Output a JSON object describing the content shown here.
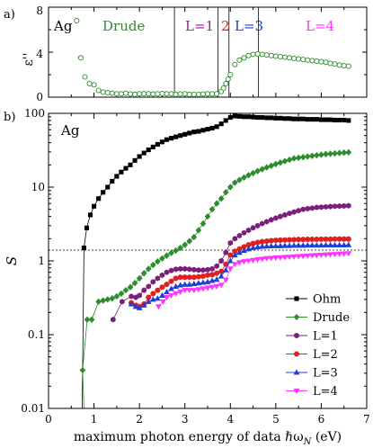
{
  "panel_a": {
    "panel_label": "a)",
    "metal": "Ag",
    "ylabel": "ε''",
    "region_labels": [
      {
        "text": "Drude",
        "color": "#2e8b2e"
      },
      {
        "text": "L=1",
        "color": "#9b1b9b"
      },
      {
        "text": "2",
        "color": "#e02020"
      },
      {
        "text": "L=3",
        "color": "#1a3fd6"
      },
      {
        "text": "L=4",
        "color": "#ff33ff"
      }
    ],
    "y_ticks": [
      "0",
      "4",
      "8"
    ],
    "x_tick_labels": [
      "0",
      "1",
      "2",
      "3",
      "4",
      "5",
      "6",
      "7"
    ]
  },
  "panel_b": {
    "panel_label": "b)",
    "metal": "Ag",
    "ylabel": "S",
    "y_tick_labels": [
      "0.01",
      "0.1",
      "1",
      "10",
      "100"
    ],
    "x_tick_labels": [
      "0",
      "1",
      "2",
      "3",
      "4",
      "5",
      "6",
      "7"
    ],
    "xlabel": "maximum photon energy of data ℏωN (eV)",
    "xlabel_main": "maximum photon energy of data ℏω",
    "xlabel_sub": "N",
    "xlabel_unit": " (eV)"
  },
  "chart_data": [
    {
      "type": "scatter",
      "panel": "a",
      "xlim": [
        0,
        7
      ],
      "ylim": [
        0,
        8
      ],
      "yticks": [
        0,
        4,
        8
      ],
      "markers": "open-circle",
      "marker_color": "#2e8b2e",
      "x": [
        0.62,
        0.71,
        0.8,
        0.9,
        1.0,
        1.1,
        1.2,
        1.3,
        1.4,
        1.5,
        1.6,
        1.7,
        1.8,
        1.9,
        2.0,
        2.1,
        2.2,
        2.3,
        2.4,
        2.5,
        2.6,
        2.7,
        2.8,
        2.9,
        3.0,
        3.1,
        3.2,
        3.3,
        3.4,
        3.5,
        3.6,
        3.7,
        3.8,
        3.85,
        3.9,
        3.95,
        4.0,
        4.1,
        4.2,
        4.3,
        4.4,
        4.5,
        4.6,
        4.7,
        4.8,
        4.9,
        5.0,
        5.1,
        5.2,
        5.3,
        5.4,
        5.5,
        5.6,
        5.7,
        5.8,
        5.9,
        6.0,
        6.1,
        6.2,
        6.3,
        6.4,
        6.5,
        6.6
      ],
      "y": [
        6.8,
        3.5,
        1.8,
        1.2,
        1.1,
        0.6,
        0.45,
        0.4,
        0.35,
        0.3,
        0.3,
        0.35,
        0.28,
        0.25,
        0.3,
        0.32,
        0.3,
        0.28,
        0.3,
        0.32,
        0.3,
        0.3,
        0.25,
        0.28,
        0.3,
        0.25,
        0.25,
        0.25,
        0.28,
        0.3,
        0.3,
        0.3,
        0.5,
        0.8,
        1.2,
        1.6,
        2.0,
        2.9,
        3.3,
        3.5,
        3.7,
        3.8,
        3.85,
        3.8,
        3.75,
        3.7,
        3.65,
        3.6,
        3.55,
        3.5,
        3.45,
        3.4,
        3.35,
        3.3,
        3.25,
        3.2,
        3.15,
        3.1,
        3.0,
        2.95,
        2.85,
        2.8,
        2.75
      ],
      "vlines": [
        2.77,
        3.73,
        3.97,
        4.62
      ]
    },
    {
      "type": "line",
      "panel": "b",
      "yscale": "log",
      "xlim": [
        0,
        7
      ],
      "ylim": [
        0.01,
        100
      ],
      "xlabel": "maximum photon energy of data ℏωN (eV)",
      "ylabel": "S",
      "hline": 1.4,
      "legend_position": "lower-right",
      "series": [
        {
          "name": "Ohm",
          "color": "#000000",
          "marker": "square",
          "x": [
            0.78,
            0.84,
            0.92,
            1.0,
            1.1,
            1.2,
            1.3,
            1.4,
            1.5,
            1.6,
            1.7,
            1.8,
            1.9,
            2.0,
            2.1,
            2.2,
            2.3,
            2.4,
            2.5,
            2.6,
            2.7,
            2.8,
            2.9,
            3.0,
            3.1,
            3.2,
            3.3,
            3.4,
            3.5,
            3.6,
            3.7,
            3.8,
            3.9,
            4.0,
            4.1,
            4.2,
            4.3,
            4.4,
            4.5,
            4.6,
            4.7,
            4.8,
            4.9,
            5.0,
            5.1,
            5.2,
            5.3,
            5.4,
            5.5,
            5.6,
            5.7,
            5.8,
            5.9,
            6.0,
            6.1,
            6.2,
            6.3,
            6.4,
            6.5,
            6.6
          ],
          "y": [
            1.5,
            2.8,
            4.2,
            5.5,
            7.0,
            8.5,
            10,
            12,
            14,
            16,
            18,
            20,
            23,
            26,
            29,
            32,
            35,
            38,
            41,
            44,
            46,
            48,
            50,
            52,
            54,
            56,
            57,
            59,
            61,
            63,
            66,
            72,
            80,
            88,
            92,
            91,
            90,
            90,
            89,
            88,
            88,
            87,
            87,
            86,
            86,
            85,
            85,
            84,
            84,
            84,
            83,
            83,
            83,
            82,
            82,
            82,
            81,
            81,
            81,
            80
          ]
        },
        {
          "name": "Drude",
          "color": "#2e8b2e",
          "marker": "diamond",
          "x": [
            0.75,
            0.85,
            0.95,
            1.1,
            1.2,
            1.3,
            1.4,
            1.5,
            1.6,
            1.7,
            1.8,
            1.9,
            2.0,
            2.1,
            2.2,
            2.3,
            2.4,
            2.5,
            2.6,
            2.7,
            2.8,
            2.9,
            3.0,
            3.1,
            3.2,
            3.3,
            3.4,
            3.5,
            3.6,
            3.7,
            3.8,
            3.9,
            4.0,
            4.1,
            4.2,
            4.3,
            4.4,
            4.5,
            4.6,
            4.7,
            4.8,
            4.9,
            5.0,
            5.1,
            5.2,
            5.3,
            5.4,
            5.5,
            5.6,
            5.7,
            5.8,
            5.9,
            6.0,
            6.1,
            6.2,
            6.3,
            6.4,
            6.5,
            6.6
          ],
          "y": [
            0.033,
            0.16,
            0.16,
            0.28,
            0.29,
            0.3,
            0.31,
            0.33,
            0.36,
            0.4,
            0.44,
            0.5,
            0.58,
            0.68,
            0.78,
            0.88,
            0.98,
            1.08,
            1.18,
            1.28,
            1.38,
            1.5,
            1.65,
            1.85,
            2.1,
            2.6,
            3.2,
            4.0,
            5.0,
            6.0,
            7.0,
            8.5,
            10,
            11.5,
            12.5,
            13.5,
            14.5,
            15.5,
            16.5,
            17.5,
            18.5,
            19.5,
            20.5,
            21.5,
            22.5,
            23.5,
            24.5,
            25,
            25.5,
            26,
            26.5,
            27,
            27.5,
            28,
            28.3,
            28.6,
            29,
            29.3,
            29.6
          ]
        },
        {
          "name": "L=1",
          "color": "#7a1f7a",
          "marker": "hexagon",
          "x": [
            1.42,
            1.62,
            1.82,
            1.92,
            2.0,
            2.1,
            2.2,
            2.3,
            2.4,
            2.5,
            2.6,
            2.7,
            2.8,
            2.9,
            3.0,
            3.1,
            3.2,
            3.3,
            3.4,
            3.5,
            3.6,
            3.7,
            3.8,
            3.9,
            4.0,
            4.1,
            4.2,
            4.3,
            4.4,
            4.5,
            4.6,
            4.7,
            4.8,
            4.9,
            5.0,
            5.1,
            5.2,
            5.3,
            5.4,
            5.5,
            5.6,
            5.7,
            5.8,
            5.9,
            6.0,
            6.1,
            6.2,
            6.3,
            6.4,
            6.5,
            6.6
          ],
          "y": [
            0.16,
            0.28,
            0.33,
            0.32,
            0.34,
            0.4,
            0.45,
            0.52,
            0.58,
            0.64,
            0.7,
            0.74,
            0.77,
            0.78,
            0.78,
            0.77,
            0.76,
            0.75,
            0.75,
            0.76,
            0.78,
            0.85,
            1.0,
            1.3,
            1.75,
            2.0,
            2.2,
            2.4,
            2.6,
            2.8,
            3.0,
            3.2,
            3.4,
            3.6,
            3.8,
            4.0,
            4.2,
            4.4,
            4.6,
            4.8,
            5.0,
            5.1,
            5.2,
            5.3,
            5.35,
            5.4,
            5.45,
            5.5,
            5.52,
            5.55,
            5.6
          ]
        },
        {
          "name": "L=2",
          "color": "#e02020",
          "marker": "circle",
          "x": [
            1.82,
            1.92,
            2.0,
            2.1,
            2.2,
            2.3,
            2.4,
            2.5,
            2.6,
            2.7,
            2.8,
            2.9,
            3.0,
            3.1,
            3.2,
            3.3,
            3.4,
            3.5,
            3.6,
            3.7,
            3.8,
            3.9,
            4.0,
            4.1,
            4.2,
            4.3,
            4.4,
            4.5,
            4.6,
            4.7,
            4.8,
            4.9,
            5.0,
            5.1,
            5.2,
            5.3,
            5.4,
            5.5,
            5.6,
            5.7,
            5.8,
            5.9,
            6.0,
            6.1,
            6.2,
            6.3,
            6.4,
            6.5,
            6.6
          ],
          "y": [
            0.27,
            0.25,
            0.24,
            0.26,
            0.32,
            0.36,
            0.4,
            0.44,
            0.48,
            0.53,
            0.58,
            0.6,
            0.6,
            0.6,
            0.6,
            0.61,
            0.62,
            0.64,
            0.65,
            0.68,
            0.72,
            0.9,
            1.2,
            1.35,
            1.45,
            1.55,
            1.65,
            1.72,
            1.78,
            1.82,
            1.85,
            1.88,
            1.9,
            1.91,
            1.92,
            1.93,
            1.94,
            1.95,
            1.95,
            1.96,
            1.96,
            1.96,
            1.97,
            1.97,
            1.97,
            1.98,
            1.98,
            1.98,
            1.98
          ]
        },
        {
          "name": "L=3",
          "color": "#1a3fd6",
          "marker": "triangle-up",
          "x": [
            1.82,
            1.92,
            2.0,
            2.1,
            2.2,
            2.3,
            2.4,
            2.5,
            2.6,
            2.7,
            2.8,
            2.9,
            3.0,
            3.1,
            3.2,
            3.3,
            3.4,
            3.5,
            3.6,
            3.7,
            3.8,
            3.9,
            4.0,
            4.1,
            4.2,
            4.3,
            4.4,
            4.5,
            4.6,
            4.7,
            4.8,
            4.9,
            5.0,
            5.1,
            5.2,
            5.3,
            5.4,
            5.5,
            5.6,
            5.7,
            5.8,
            5.9,
            6.0,
            6.1,
            6.2,
            6.3,
            6.4,
            6.5,
            6.6
          ],
          "y": [
            0.26,
            0.24,
            0.23,
            0.25,
            0.28,
            0.3,
            0.31,
            0.34,
            0.38,
            0.42,
            0.45,
            0.47,
            0.48,
            0.48,
            0.49,
            0.5,
            0.51,
            0.52,
            0.54,
            0.56,
            0.62,
            0.75,
            1.0,
            1.2,
            1.3,
            1.38,
            1.45,
            1.5,
            1.54,
            1.57,
            1.58,
            1.59,
            1.6,
            1.6,
            1.61,
            1.61,
            1.62,
            1.62,
            1.62,
            1.63,
            1.63,
            1.63,
            1.63,
            1.64,
            1.64,
            1.64,
            1.64,
            1.64,
            1.65
          ]
        },
        {
          "name": "L=4",
          "color": "#ff33ff",
          "marker": "triangle-down",
          "x": [
            2.42,
            2.52,
            2.6,
            2.7,
            2.8,
            2.9,
            3.0,
            3.1,
            3.2,
            3.3,
            3.4,
            3.5,
            3.6,
            3.7,
            3.8,
            3.9,
            4.0,
            4.1,
            4.2,
            4.3,
            4.4,
            4.5,
            4.6,
            4.7,
            4.8,
            4.9,
            5.0,
            5.1,
            5.2,
            5.3,
            5.4,
            5.5,
            5.6,
            5.7,
            5.8,
            5.9,
            6.0,
            6.1,
            6.2,
            6.3,
            6.4,
            6.5,
            6.6
          ],
          "y": [
            0.24,
            0.28,
            0.32,
            0.34,
            0.36,
            0.38,
            0.4,
            0.4,
            0.4,
            0.41,
            0.42,
            0.43,
            0.44,
            0.45,
            0.47,
            0.55,
            0.78,
            0.9,
            0.95,
            0.98,
            1.0,
            1.02,
            1.04,
            1.06,
            1.08,
            1.09,
            1.1,
            1.11,
            1.12,
            1.13,
            1.14,
            1.15,
            1.16,
            1.17,
            1.18,
            1.19,
            1.2,
            1.21,
            1.22,
            1.23,
            1.24,
            1.25,
            1.26
          ]
        }
      ]
    }
  ]
}
